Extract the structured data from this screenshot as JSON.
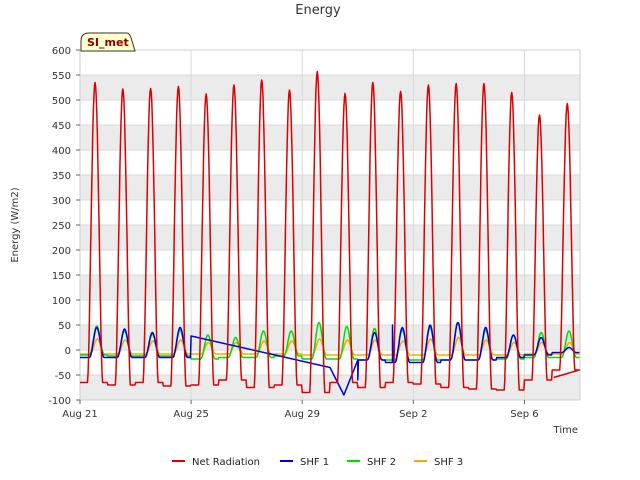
{
  "chart_data": {
    "type": "line",
    "title": "Energy",
    "xlabel": "Time",
    "ylabel": "Energy (W/m2)",
    "site_label": "SI_met",
    "ylim": [
      -100,
      600
    ],
    "xlim": [
      "2023-08-21",
      "2023-09-08"
    ],
    "y_ticks": [
      -100,
      -50,
      0,
      50,
      100,
      150,
      200,
      250,
      300,
      350,
      400,
      450,
      500,
      550,
      600
    ],
    "x_ticks": [
      {
        "date": "2023-08-21",
        "label": "Aug 21"
      },
      {
        "date": "2023-08-25",
        "label": "Aug 25"
      },
      {
        "date": "2023-08-29",
        "label": "Aug 29"
      },
      {
        "date": "2023-09-02",
        "label": "Sep 2"
      },
      {
        "date": "2023-09-06",
        "label": "Sep 6"
      }
    ],
    "grid": true,
    "legend_position": "bottom",
    "background_bands": [
      "#ebebeb",
      "#ffffff"
    ],
    "series": [
      {
        "name": "Net Radiation",
        "color": "#dd0000",
        "daily": [
          {
            "date": "2023-08-21",
            "night_min": -65,
            "peak": 535
          },
          {
            "date": "2023-08-22",
            "night_min": -70,
            "peak": 522
          },
          {
            "date": "2023-08-23",
            "night_min": -65,
            "peak": 523
          },
          {
            "date": "2023-08-24",
            "night_min": -72,
            "peak": 527
          },
          {
            "date": "2023-08-25",
            "night_min": -70,
            "peak": 512
          },
          {
            "date": "2023-08-26",
            "night_min": -60,
            "peak": 530
          },
          {
            "date": "2023-08-27",
            "night_min": -75,
            "peak": 540
          },
          {
            "date": "2023-08-28",
            "night_min": -70,
            "peak": 520
          },
          {
            "date": "2023-08-29",
            "night_min": -85,
            "peak": 557
          },
          {
            "date": "2023-08-30",
            "night_min": -65,
            "peak": 513
          },
          {
            "date": "2023-08-31",
            "night_min": -75,
            "peak": 535
          },
          {
            "date": "2023-09-01",
            "night_min": -65,
            "peak": 517
          },
          {
            "date": "2023-09-02",
            "night_min": -68,
            "peak": 530
          },
          {
            "date": "2023-09-03",
            "night_min": -75,
            "peak": 533
          },
          {
            "date": "2023-09-04",
            "night_min": -78,
            "peak": 533
          },
          {
            "date": "2023-09-05",
            "night_min": -80,
            "peak": 515
          },
          {
            "date": "2023-09-06",
            "night_min": -60,
            "peak": 470
          },
          {
            "date": "2023-09-07",
            "night_min": -40,
            "peak": 493
          }
        ],
        "last_value": -55
      },
      {
        "name": "SHF 1",
        "color": "#0000dd",
        "daily": [
          {
            "date": "2023-08-21",
            "night_min": -15,
            "peak": 45
          },
          {
            "date": "2023-08-22",
            "night_min": -15,
            "peak": 42
          },
          {
            "date": "2023-08-23",
            "night_min": -15,
            "peak": 35
          },
          {
            "date": "2023-08-24",
            "night_min": -15,
            "peak": 45
          },
          {
            "date": "2023-08-31",
            "night_min": -20,
            "peak": 35
          },
          {
            "date": "2023-09-01",
            "night_min": -25,
            "peak": 45
          },
          {
            "date": "2023-09-02",
            "night_min": -25,
            "peak": 50
          },
          {
            "date": "2023-09-03",
            "night_min": -20,
            "peak": 55
          },
          {
            "date": "2023-09-04",
            "night_min": -20,
            "peak": 45
          },
          {
            "date": "2023-09-05",
            "night_min": -15,
            "peak": 30
          },
          {
            "date": "2023-09-06",
            "night_min": -10,
            "peak": 25
          },
          {
            "date": "2023-09-07",
            "night_min": -5,
            "peak": 5
          }
        ],
        "gap_points": [
          {
            "date": "2023-08-25",
            "value": 28
          },
          {
            "date": "2023-08-30",
            "value": -35
          },
          {
            "date": "2023-08-30T12:00",
            "value": -90
          },
          {
            "date": "2023-08-31",
            "value": -60
          },
          {
            "date": "2023-09-01T06:00",
            "value": 50
          }
        ]
      },
      {
        "name": "SHF 2",
        "color": "#00dd00",
        "daily": [
          {
            "date": "2023-08-21",
            "night_min": -10,
            "peak": 48
          },
          {
            "date": "2023-08-22",
            "night_min": -12,
            "peak": 38
          },
          {
            "date": "2023-08-23",
            "night_min": -12,
            "peak": 32
          },
          {
            "date": "2023-08-24",
            "night_min": -12,
            "peak": 40
          },
          {
            "date": "2023-08-25",
            "night_min": -18,
            "peak": 30
          },
          {
            "date": "2023-08-26",
            "night_min": -15,
            "peak": 25
          },
          {
            "date": "2023-08-27",
            "night_min": -15,
            "peak": 38
          },
          {
            "date": "2023-08-28",
            "night_min": -12,
            "peak": 38
          },
          {
            "date": "2023-08-29",
            "night_min": -18,
            "peak": 55
          },
          {
            "date": "2023-08-30",
            "night_min": -18,
            "peak": 47
          },
          {
            "date": "2023-08-31",
            "night_min": -20,
            "peak": 43
          },
          {
            "date": "2023-09-01",
            "night_min": -20,
            "peak": 40
          },
          {
            "date": "2023-09-02",
            "night_min": -20,
            "peak": 45
          },
          {
            "date": "2023-09-03",
            "night_min": -20,
            "peak": 55
          },
          {
            "date": "2023-09-04",
            "night_min": -20,
            "peak": 40
          },
          {
            "date": "2023-09-05",
            "night_min": -18,
            "peak": 30
          },
          {
            "date": "2023-09-06",
            "night_min": -15,
            "peak": 35
          },
          {
            "date": "2023-09-07",
            "night_min": -15,
            "peak": 38
          }
        ]
      },
      {
        "name": "SHF 3",
        "color": "#ffa500",
        "daily": [
          {
            "date": "2023-08-21",
            "night_min": -8,
            "peak": 22
          },
          {
            "date": "2023-08-22",
            "night_min": -8,
            "peak": 20
          },
          {
            "date": "2023-08-23",
            "night_min": -8,
            "peak": 18
          },
          {
            "date": "2023-08-24",
            "night_min": -8,
            "peak": 20
          },
          {
            "date": "2023-08-25",
            "night_min": -8,
            "peak": 15
          },
          {
            "date": "2023-08-26",
            "night_min": -8,
            "peak": 15
          },
          {
            "date": "2023-08-27",
            "night_min": -8,
            "peak": 18
          },
          {
            "date": "2023-08-28",
            "night_min": -8,
            "peak": 18
          },
          {
            "date": "2023-08-29",
            "night_min": -10,
            "peak": 22
          },
          {
            "date": "2023-08-30",
            "night_min": -10,
            "peak": 20
          },
          {
            "date": "2023-08-31",
            "night_min": -10,
            "peak": 20
          },
          {
            "date": "2023-09-01",
            "night_min": -10,
            "peak": 18
          },
          {
            "date": "2023-09-02",
            "night_min": -10,
            "peak": 22
          },
          {
            "date": "2023-09-03",
            "night_min": -10,
            "peak": 25
          },
          {
            "date": "2023-09-04",
            "night_min": -10,
            "peak": 20
          },
          {
            "date": "2023-09-05",
            "night_min": -10,
            "peak": 15
          },
          {
            "date": "2023-09-06",
            "night_min": -8,
            "peak": 15
          },
          {
            "date": "2023-09-07",
            "night_min": -8,
            "peak": 15
          }
        ]
      }
    ]
  }
}
